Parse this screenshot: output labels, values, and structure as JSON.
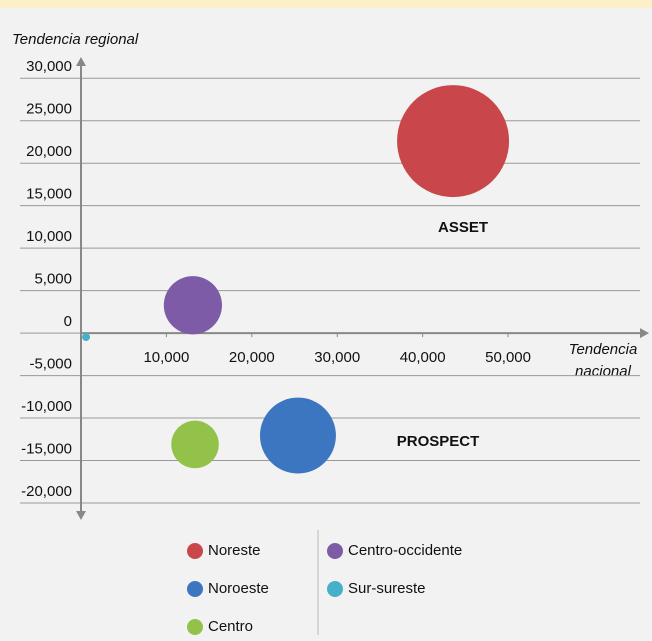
{
  "chart_data": {
    "type": "bubble",
    "y_label": "Tendencia regional",
    "x_label": [
      "Tendencia",
      "nacional"
    ],
    "annotations": [
      "ASSET",
      "PROSPECT"
    ],
    "xlim": [
      0,
      66500
    ],
    "ylim": [
      -22000,
      32500
    ],
    "xticks": [
      {
        "value": 10000,
        "label": "10,000"
      },
      {
        "value": 20000,
        "label": "20,000"
      },
      {
        "value": 30000,
        "label": "30,000"
      },
      {
        "value": 40000,
        "label": "40,000"
      },
      {
        "value": 50000,
        "label": "50,000"
      }
    ],
    "yticks": [
      {
        "value": 30000,
        "label": "30,000"
      },
      {
        "value": 25000,
        "label": "25,000"
      },
      {
        "value": 20000,
        "label": "20,000"
      },
      {
        "value": 15000,
        "label": "15,000"
      },
      {
        "value": 10000,
        "label": "10,000"
      },
      {
        "value": 5000,
        "label": "5,000"
      },
      0,
      {
        "value": -5000,
        "label": "-5,000"
      },
      {
        "value": -10000,
        "label": "-10,000"
      },
      {
        "value": -15000,
        "label": "-15,000"
      },
      {
        "value": -20000,
        "label": "-20,000"
      }
    ],
    "grid": true,
    "series": [
      {
        "name": "Noreste",
        "color": "#c9474a",
        "x": [
          43560
        ],
        "values": [
          22600
        ],
        "sizes": [
          100
        ]
      },
      {
        "name": "Noroeste",
        "color": "#3d76c0",
        "x": [
          25400
        ],
        "values": [
          -12060
        ],
        "sizes": [
          46
        ]
      },
      {
        "name": "Centro",
        "color": "#93c24a",
        "x": [
          13350
        ],
        "values": [
          -13100
        ],
        "sizes": [
          18
        ]
      },
      {
        "name": "Centro-occidente",
        "color": "#7e5ba7",
        "x": [
          13100
        ],
        "values": [
          3280
        ],
        "sizes": [
          27
        ]
      },
      {
        "name": "Sur-sureste",
        "color": "#45b0c8",
        "x": [
          590
        ],
        "values": [
          -470
        ],
        "sizes": [
          0.5
        ]
      }
    ]
  }
}
